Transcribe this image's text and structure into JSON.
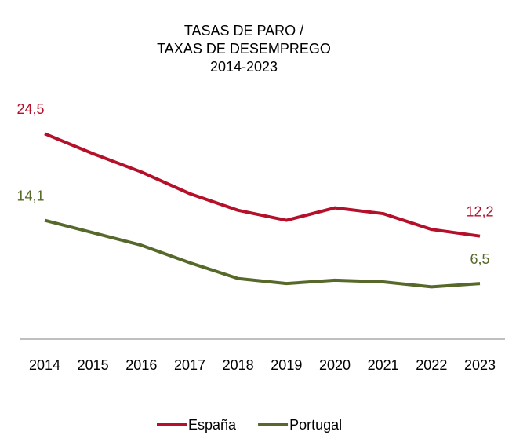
{
  "chart_data": {
    "type": "line",
    "title": [
      "TASAS DE PARO /",
      "TAXAS DE DESEMPREGO",
      "2014-2023"
    ],
    "categories": [
      "2014",
      "2015",
      "2016",
      "2017",
      "2018",
      "2019",
      "2020",
      "2021",
      "2022",
      "2023"
    ],
    "series": [
      {
        "name": "España",
        "color": "#b5102a",
        "values": [
          24.5,
          22.1,
          19.9,
          17.3,
          15.3,
          14.1,
          15.6,
          14.9,
          13.0,
          12.2
        ],
        "value_labels": [
          "24,5",
          null,
          null,
          null,
          null,
          null,
          null,
          null,
          null,
          "12,2"
        ]
      },
      {
        "name": "Portugal",
        "color": "#56692a",
        "values": [
          14.1,
          12.6,
          11.1,
          9.0,
          7.1,
          6.5,
          6.9,
          6.7,
          6.1,
          6.5
        ],
        "value_labels": [
          "14,1",
          null,
          null,
          null,
          null,
          null,
          null,
          null,
          null,
          "6,5"
        ]
      }
    ],
    "ylim": [
      0,
      30
    ],
    "grid": false,
    "legend": "bottom"
  }
}
